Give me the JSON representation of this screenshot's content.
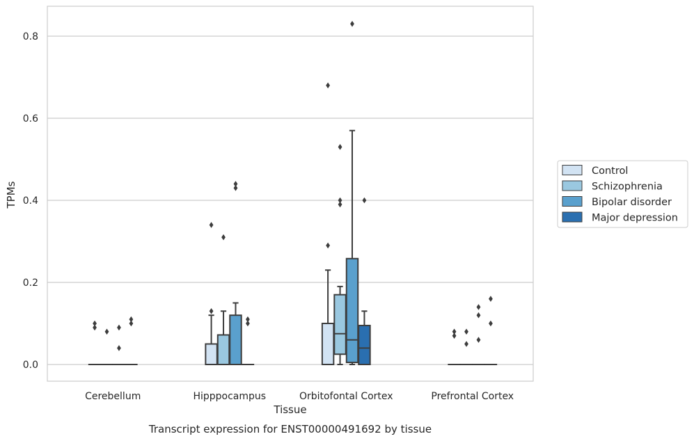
{
  "chart_data": {
    "type": "box",
    "caption": "Transcript expression for ENST00000491692 by tissue",
    "xlabel": "Tissue",
    "ylabel": "TPMs",
    "ylim": [
      -0.04,
      0.875
    ],
    "yticks": [
      0.0,
      0.2,
      0.4,
      0.6,
      0.8
    ],
    "ytick_labels": [
      "0.0",
      "0.2",
      "0.4",
      "0.6",
      "0.8"
    ],
    "grid": "horizontal",
    "legend_position": "center-right outside",
    "categories": [
      "Cerebellum",
      "Hipppocampus",
      "Orbitofontal Cortex",
      "Prefrontal Cortex"
    ],
    "series": [
      {
        "name": "Control",
        "color": "#d2e3f3",
        "boxes": [
          {
            "q1": 0,
            "median": 0,
            "q3": 0,
            "whisker_low": 0,
            "whisker_high": 0,
            "outliers": [
              0.09,
              0.1
            ]
          },
          {
            "q1": 0,
            "median": 0,
            "q3": 0.05,
            "whisker_low": 0,
            "whisker_high": 0.12,
            "outliers": [
              0.13,
              0.34
            ]
          },
          {
            "q1": 0,
            "median": 0,
            "q3": 0.1,
            "whisker_low": 0,
            "whisker_high": 0.23,
            "outliers": [
              0.29,
              0.68
            ]
          },
          {
            "q1": 0,
            "median": 0,
            "q3": 0,
            "whisker_low": 0,
            "whisker_high": 0,
            "outliers": [
              0.07,
              0.08
            ]
          }
        ]
      },
      {
        "name": "Schizophrenia",
        "color": "#9ac8e0",
        "boxes": [
          {
            "q1": 0,
            "median": 0,
            "q3": 0,
            "whisker_low": 0,
            "whisker_high": 0,
            "outliers": [
              0.08
            ]
          },
          {
            "q1": 0,
            "median": 0,
            "q3": 0.072,
            "whisker_low": 0,
            "whisker_high": 0.13,
            "outliers": [
              0.31
            ]
          },
          {
            "q1": 0.025,
            "median": 0.075,
            "q3": 0.17,
            "whisker_low": 0,
            "whisker_high": 0.19,
            "outliers": [
              0.39,
              0.4,
              0.53
            ]
          },
          {
            "q1": 0,
            "median": 0,
            "q3": 0,
            "whisker_low": 0,
            "whisker_high": 0,
            "outliers": [
              0.05,
              0.08
            ]
          }
        ]
      },
      {
        "name": "Bipolar disorder",
        "color": "#5aa0cd",
        "boxes": [
          {
            "q1": 0,
            "median": 0,
            "q3": 0,
            "whisker_low": 0,
            "whisker_high": 0,
            "outliers": [
              0.04,
              0.09
            ]
          },
          {
            "q1": 0,
            "median": 0,
            "q3": 0.12,
            "whisker_low": 0,
            "whisker_high": 0.15,
            "outliers": [
              0.43,
              0.44
            ]
          },
          {
            "q1": 0.005,
            "median": 0.06,
            "q3": 0.258,
            "whisker_low": 0,
            "whisker_high": 0.57,
            "outliers": [
              0.83
            ]
          },
          {
            "q1": 0,
            "median": 0,
            "q3": 0,
            "whisker_low": 0,
            "whisker_high": 0,
            "outliers": [
              0.06,
              0.12,
              0.14
            ]
          }
        ]
      },
      {
        "name": "Major depression",
        "color": "#2a6fb0",
        "boxes": [
          {
            "q1": 0,
            "median": 0,
            "q3": 0,
            "whisker_low": 0,
            "whisker_high": 0,
            "outliers": [
              0.1,
              0.11
            ]
          },
          {
            "q1": 0,
            "median": 0,
            "q3": 0,
            "whisker_low": 0,
            "whisker_high": 0,
            "outliers": [
              0.1,
              0.11
            ]
          },
          {
            "q1": 0,
            "median": 0.04,
            "q3": 0.095,
            "whisker_low": 0,
            "whisker_high": 0.13,
            "outliers": [
              0.4
            ]
          },
          {
            "q1": 0,
            "median": 0,
            "q3": 0,
            "whisker_low": 0,
            "whisker_high": 0,
            "outliers": [
              0.1,
              0.16
            ]
          }
        ]
      }
    ]
  }
}
